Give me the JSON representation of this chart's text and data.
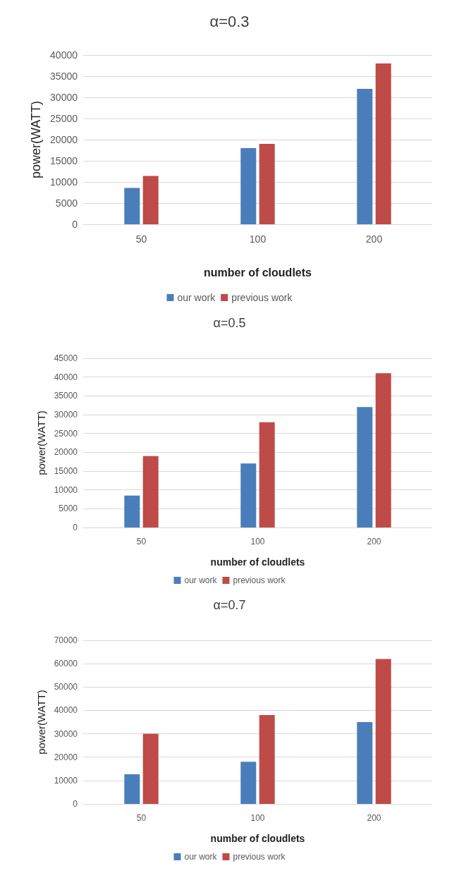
{
  "chart_data": [
    {
      "type": "bar",
      "title": "α=0.3",
      "xlabel": "number of cloudlets",
      "ylabel": "power(WATT)",
      "categories": [
        "50",
        "100",
        "200"
      ],
      "series": [
        {
          "name": "our work",
          "color": "#4a7ebb",
          "values": [
            8600,
            18000,
            32000
          ]
        },
        {
          "name": "previous work",
          "color": "#be4b48",
          "values": [
            11400,
            19000,
            38000
          ]
        }
      ],
      "ylim": [
        0,
        40000
      ],
      "yticks": [
        0,
        5000,
        10000,
        15000,
        20000,
        25000,
        30000,
        35000,
        40000
      ],
      "grid": "y",
      "legend": "bottom"
    },
    {
      "type": "bar",
      "title": "α=0.5",
      "xlabel": "number of cloudlets",
      "ylabel": "power(WATT)",
      "categories": [
        "50",
        "100",
        "200"
      ],
      "series": [
        {
          "name": "our work",
          "color": "#4a7ebb",
          "values": [
            8500,
            17000,
            32000
          ]
        },
        {
          "name": "previous work",
          "color": "#be4b48",
          "values": [
            19000,
            28000,
            41000
          ]
        }
      ],
      "ylim": [
        0,
        45000
      ],
      "yticks": [
        0,
        5000,
        10000,
        15000,
        20000,
        25000,
        30000,
        35000,
        40000,
        45000
      ],
      "grid": "y",
      "legend": "bottom"
    },
    {
      "type": "bar",
      "title": "α=0.7",
      "xlabel": "number of cloudlets",
      "ylabel": "power(WATT)",
      "categories": [
        "50",
        "100",
        "200"
      ],
      "series": [
        {
          "name": "our work",
          "color": "#4a7ebb",
          "values": [
            12700,
            18000,
            35000
          ]
        },
        {
          "name": "previous work",
          "color": "#be4b48",
          "values": [
            30000,
            38000,
            62000
          ]
        }
      ],
      "ylim": [
        0,
        70000
      ],
      "yticks": [
        0,
        10000,
        20000,
        30000,
        40000,
        50000,
        60000,
        70000
      ],
      "grid": "y",
      "legend": "bottom"
    }
  ]
}
